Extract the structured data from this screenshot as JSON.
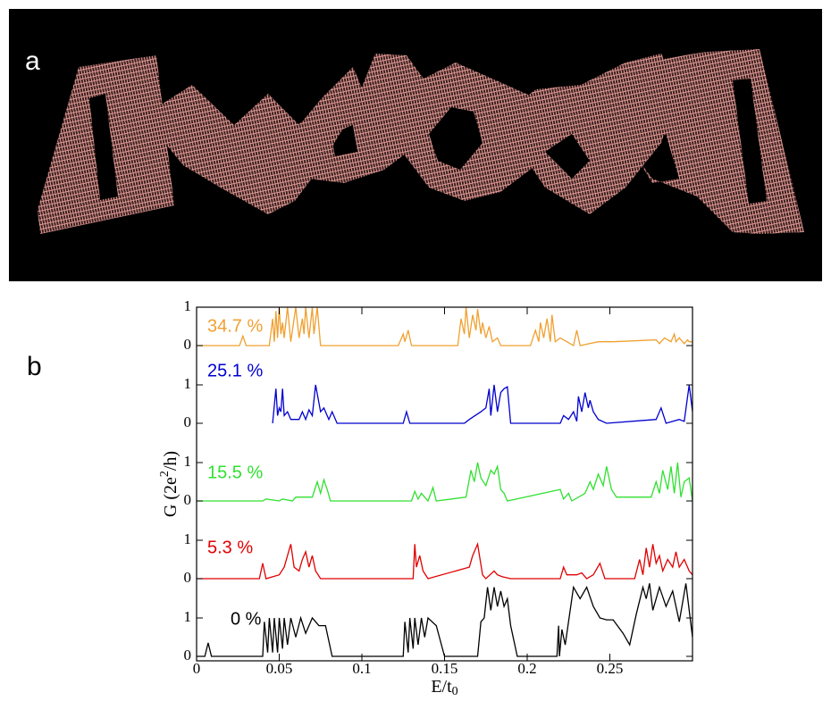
{
  "panel_labels": [
    "a",
    "b"
  ],
  "chart_data": [
    {
      "type": "line",
      "xlim": [
        0,
        0.3
      ],
      "ylim": [
        -0.1,
        1.0
      ],
      "yticks": [
        0,
        1
      ],
      "x": [
        0,
        0.026,
        0.028,
        0.03,
        0.044,
        0.046,
        0.047,
        0.048,
        0.049,
        0.05,
        0.051,
        0.052,
        0.053,
        0.055,
        0.057,
        0.06,
        0.062,
        0.064,
        0.065,
        0.066,
        0.068,
        0.07,
        0.071,
        0.073,
        0.075,
        0.122,
        0.125,
        0.126,
        0.128,
        0.13,
        0.158,
        0.16,
        0.162,
        0.163,
        0.165,
        0.167,
        0.169,
        0.17,
        0.172,
        0.173,
        0.175,
        0.177,
        0.179,
        0.182,
        0.184,
        0.202,
        0.205,
        0.207,
        0.208,
        0.21,
        0.212,
        0.214,
        0.215,
        0.217,
        0.22,
        0.228,
        0.23,
        0.232,
        0.243,
        0.252,
        0.278,
        0.28,
        0.283,
        0.287,
        0.289,
        0.29,
        0.292,
        0.295,
        0.297,
        0.298,
        0.3
      ],
      "series": [
        {
          "name": "34.7 %",
          "color": "#f0a030",
          "values": [
            0,
            0,
            0.25,
            0,
            0,
            0.7,
            0.1,
            0.9,
            0.2,
            1,
            0.3,
            0.6,
            0.2,
            1,
            0.1,
            1,
            0.2,
            0.7,
            0.3,
            1,
            0.2,
            1,
            0.3,
            1,
            0,
            0,
            0.3,
            0.1,
            0.4,
            0,
            0,
            0.7,
            0.3,
            1,
            0.2,
            0.8,
            0.4,
            0.95,
            0.3,
            0.6,
            0.2,
            0.5,
            0.1,
            0.2,
            0,
            0,
            0.4,
            0.1,
            0.6,
            0.2,
            0.7,
            0.1,
            0.8,
            0.1,
            0.2,
            0,
            0.4,
            0,
            0.1,
            0.1,
            0.15,
            0.05,
            0.2,
            0.1,
            0.3,
            0.1,
            0.2,
            0.05,
            0.15,
            0.1,
            0.1
          ]
        }
      ]
    },
    {
      "type": "line",
      "xlim": [
        0,
        0.3
      ],
      "ylim": [
        -0.1,
        1.9
      ],
      "yticks": [
        0,
        1
      ],
      "x": [
        0.046,
        0.048,
        0.049,
        0.05,
        0.051,
        0.052,
        0.053,
        0.055,
        0.057,
        0.062,
        0.064,
        0.066,
        0.068,
        0.07,
        0.072,
        0.075,
        0.077,
        0.08,
        0.082,
        0.085,
        0.125,
        0.127,
        0.129,
        0.162,
        0.165,
        0.172,
        0.175,
        0.177,
        0.178,
        0.18,
        0.182,
        0.184,
        0.186,
        0.188,
        0.19,
        0.22,
        0.222,
        0.225,
        0.228,
        0.23,
        0.231,
        0.233,
        0.235,
        0.237,
        0.238,
        0.24,
        0.243,
        0.248,
        0.278,
        0.281,
        0.284,
        0.292,
        0.295,
        0.298,
        0.3
      ],
      "series": [
        {
          "name": "25.1 %",
          "color": "#0000d0",
          "values": [
            0,
            0.9,
            0.2,
            0.4,
            0.3,
            0.9,
            0.2,
            0.3,
            0.1,
            0.1,
            0.3,
            0.1,
            0.35,
            0.2,
            1,
            0.3,
            0.4,
            0.1,
            0.3,
            0,
            0,
            0.3,
            0,
            0,
            0.1,
            0.3,
            0.4,
            0.9,
            0.2,
            1,
            0.3,
            0.8,
            0.9,
            0.95,
            0,
            0,
            0.2,
            0.1,
            0.3,
            0.05,
            0.7,
            0.3,
            0.8,
            0.4,
            0.6,
            0.3,
            0.1,
            0,
            0.1,
            0.4,
            0,
            0.1,
            0.05,
            1,
            0.3
          ]
        }
      ]
    },
    {
      "type": "line",
      "xlim": [
        0,
        0.3
      ],
      "ylim": [
        -0.1,
        1.9
      ],
      "yticks": [
        0,
        1
      ],
      "x": [
        0,
        0.04,
        0.042,
        0.05,
        0.052,
        0.058,
        0.06,
        0.07,
        0.073,
        0.075,
        0.077,
        0.079,
        0.081,
        0.13,
        0.132,
        0.134,
        0.136,
        0.14,
        0.143,
        0.145,
        0.163,
        0.166,
        0.168,
        0.17,
        0.172,
        0.175,
        0.178,
        0.18,
        0.182,
        0.184,
        0.186,
        0.188,
        0.22,
        0.222,
        0.225,
        0.227,
        0.235,
        0.238,
        0.24,
        0.243,
        0.246,
        0.248,
        0.251,
        0.254,
        0.275,
        0.278,
        0.28,
        0.282,
        0.285,
        0.287,
        0.289,
        0.291,
        0.293,
        0.295,
        0.298,
        0.3
      ],
      "series": [
        {
          "name": "15.5 %",
          "color": "#30e030",
          "values": [
            0,
            0,
            0.05,
            0,
            0.05,
            0,
            0.1,
            0.1,
            0.5,
            0.2,
            0.55,
            0.3,
            0,
            0,
            0.25,
            0.05,
            0.2,
            0,
            0.35,
            0,
            0.1,
            0.8,
            0.5,
            1,
            0.6,
            0.4,
            0.8,
            0.7,
            0.9,
            0.3,
            0.2,
            0,
            0.3,
            0.05,
            0.2,
            0,
            0.2,
            0.5,
            0.3,
            0.7,
            0.4,
            0.9,
            0.3,
            0.1,
            0.1,
            0.5,
            0.2,
            0.8,
            0.3,
            0.9,
            0.2,
            1,
            0.1,
            0.5,
            0.6,
            0
          ]
        }
      ]
    },
    {
      "type": "line",
      "xlim": [
        0,
        0.3
      ],
      "ylim": [
        -0.1,
        1.9
      ],
      "yticks": [
        0,
        1
      ],
      "x": [
        0,
        0.038,
        0.04,
        0.042,
        0.05,
        0.053,
        0.055,
        0.057,
        0.059,
        0.062,
        0.064,
        0.066,
        0.068,
        0.07,
        0.072,
        0.075,
        0.131,
        0.132,
        0.133,
        0.135,
        0.137,
        0.14,
        0.165,
        0.167,
        0.17,
        0.173,
        0.175,
        0.18,
        0.182,
        0.185,
        0.19,
        0.22,
        0.222,
        0.224,
        0.23,
        0.233,
        0.236,
        0.24,
        0.244,
        0.247,
        0.265,
        0.268,
        0.27,
        0.272,
        0.274,
        0.276,
        0.278,
        0.28,
        0.282,
        0.285,
        0.288,
        0.29,
        0.292,
        0.295,
        0.298,
        0.3
      ],
      "series": [
        {
          "name": "5.3 %",
          "color": "#e00000",
          "values": [
            0,
            0,
            0.4,
            0,
            0.1,
            0.3,
            0.6,
            0.9,
            0.3,
            0.2,
            0.5,
            0.7,
            0.3,
            0.6,
            0.2,
            0,
            0,
            0.9,
            0.3,
            0.6,
            0.2,
            0,
            0.3,
            0.6,
            0.9,
            0.1,
            0,
            0.2,
            0.1,
            0.05,
            0,
            0,
            0.3,
            0.1,
            0.1,
            0.15,
            0,
            0.1,
            0.4,
            0,
            0,
            0.5,
            0.1,
            0.8,
            0.3,
            0.9,
            0.4,
            0.6,
            0.2,
            0.5,
            0.3,
            0.7,
            0.3,
            0.5,
            0.2,
            0.1
          ]
        }
      ]
    },
    {
      "type": "line",
      "xlim": [
        0,
        0.3
      ],
      "ylim": [
        -0.1,
        1.9
      ],
      "yticks": [
        0,
        1
      ],
      "xticks": [
        0,
        0.05,
        0.1,
        0.15,
        0.2,
        0.25
      ],
      "xlabel": [
        "E/t",
        "0"
      ],
      "ylabel": [
        "G (2e",
        "2",
        "/h)"
      ],
      "x": [
        0,
        0.005,
        0.007,
        0.009,
        0.04,
        0.041,
        0.043,
        0.044,
        0.046,
        0.047,
        0.049,
        0.05,
        0.052,
        0.053,
        0.055,
        0.057,
        0.06,
        0.063,
        0.066,
        0.07,
        0.074,
        0.078,
        0.082,
        0.125,
        0.126,
        0.128,
        0.129,
        0.131,
        0.132,
        0.134,
        0.136,
        0.138,
        0.14,
        0.145,
        0.15,
        0.17,
        0.172,
        0.174,
        0.176,
        0.178,
        0.18,
        0.182,
        0.184,
        0.186,
        0.188,
        0.19,
        0.194,
        0.218,
        0.219,
        0.2195,
        0.221,
        0.223,
        0.225,
        0.228,
        0.232,
        0.236,
        0.24,
        0.244,
        0.248,
        0.252,
        0.258,
        0.262,
        0.266,
        0.27,
        0.272,
        0.274,
        0.276,
        0.28,
        0.284,
        0.288,
        0.292,
        0.296,
        0.3
      ],
      "series": [
        {
          "name": "0 %",
          "color": "#000000",
          "values": [
            0,
            0,
            0.35,
            0,
            0,
            0.9,
            0.1,
            1,
            0.1,
            1,
            0.1,
            1,
            0.2,
            1,
            0.3,
            1,
            0.5,
            1,
            0.6,
            1,
            0.8,
            0.8,
            0,
            0,
            0.9,
            0.1,
            1,
            0.2,
            1,
            0.3,
            1,
            0.5,
            1,
            0.8,
            0,
            0,
            0.9,
            1,
            1.8,
            1.2,
            1.8,
            1.3,
            1.7,
            1.3,
            1.5,
            0.8,
            0,
            0,
            0.8,
            0,
            0.7,
            0.3,
            0.9,
            1.8,
            1.5,
            1.8,
            1.3,
            1,
            0.95,
            0.95,
            0.6,
            0.3,
            1.1,
            1.8,
            1.5,
            1.9,
            1.2,
            1.8,
            1.3,
            1.7,
            0.9,
            1.9,
            0.5
          ]
        }
      ]
    }
  ]
}
